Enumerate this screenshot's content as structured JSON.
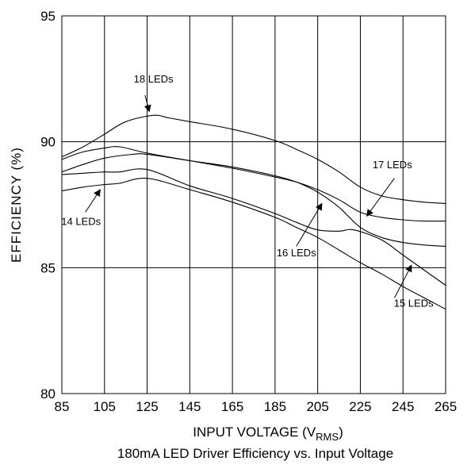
{
  "chart_data": {
    "type": "line",
    "title": "",
    "caption": "180mA LED Driver Efficiency vs. Input Voltage",
    "xlabel_main": "INPUT VOLTAGE (V",
    "xlabel_sub": "RMS",
    "xlabel_end": ")",
    "ylabel": "EFFICIENCY (%)",
    "xlim": [
      85,
      265
    ],
    "ylim": [
      80,
      95
    ],
    "x_ticks": [
      85,
      105,
      125,
      145,
      165,
      185,
      205,
      225,
      245,
      265
    ],
    "y_ticks": [
      80,
      85,
      90,
      95
    ],
    "grid": true,
    "series": [
      {
        "name": "18 LEDs",
        "points": [
          [
            85,
            89.4
          ],
          [
            95,
            89.8
          ],
          [
            105,
            90.3
          ],
          [
            115,
            90.8
          ],
          [
            128,
            91.05
          ],
          [
            135,
            90.95
          ],
          [
            145,
            90.8
          ],
          [
            165,
            90.5
          ],
          [
            185,
            90.05
          ],
          [
            195,
            89.7
          ],
          [
            205,
            89.3
          ],
          [
            215,
            88.8
          ],
          [
            225,
            88.2
          ],
          [
            235,
            87.85
          ],
          [
            245,
            87.7
          ],
          [
            255,
            87.6
          ],
          [
            265,
            87.55
          ]
        ]
      },
      {
        "name": "17 LEDs",
        "points": [
          [
            85,
            89.3
          ],
          [
            95,
            89.6
          ],
          [
            105,
            89.75
          ],
          [
            112,
            89.8
          ],
          [
            125,
            89.55
          ],
          [
            145,
            89.25
          ],
          [
            165,
            88.95
          ],
          [
            185,
            88.6
          ],
          [
            195,
            88.4
          ],
          [
            205,
            88.1
          ],
          [
            215,
            87.7
          ],
          [
            225,
            87.2
          ],
          [
            235,
            87.0
          ],
          [
            245,
            86.9
          ],
          [
            255,
            86.85
          ],
          [
            265,
            86.85
          ]
        ]
      },
      {
        "name": "16 LEDs",
        "points": [
          [
            85,
            88.8
          ],
          [
            95,
            89.1
          ],
          [
            105,
            89.35
          ],
          [
            118,
            89.5
          ],
          [
            125,
            89.5
          ],
          [
            145,
            89.25
          ],
          [
            165,
            89.0
          ],
          [
            185,
            88.65
          ],
          [
            195,
            88.4
          ],
          [
            205,
            88.0
          ],
          [
            215,
            87.4
          ],
          [
            225,
            86.6
          ],
          [
            235,
            86.2
          ],
          [
            245,
            86.0
          ],
          [
            255,
            85.9
          ],
          [
            265,
            85.85
          ]
        ]
      },
      {
        "name": "15 LEDs",
        "points": [
          [
            85,
            88.7
          ],
          [
            95,
            88.75
          ],
          [
            105,
            88.8
          ],
          [
            112,
            88.8
          ],
          [
            125,
            88.9
          ],
          [
            145,
            88.25
          ],
          [
            165,
            87.75
          ],
          [
            185,
            87.15
          ],
          [
            195,
            86.8
          ],
          [
            205,
            86.5
          ],
          [
            215,
            86.45
          ],
          [
            222,
            86.5
          ],
          [
            235,
            86.1
          ],
          [
            245,
            85.5
          ],
          [
            255,
            84.9
          ],
          [
            265,
            84.3
          ]
        ]
      },
      {
        "name": "14 LEDs",
        "points": [
          [
            85,
            88.05
          ],
          [
            95,
            88.2
          ],
          [
            105,
            88.3
          ],
          [
            112,
            88.35
          ],
          [
            125,
            88.55
          ],
          [
            145,
            88.1
          ],
          [
            165,
            87.6
          ],
          [
            185,
            87.0
          ],
          [
            195,
            86.6
          ],
          [
            205,
            86.2
          ],
          [
            215,
            85.7
          ],
          [
            225,
            85.2
          ],
          [
            235,
            84.75
          ],
          [
            245,
            84.25
          ],
          [
            255,
            83.8
          ],
          [
            265,
            83.35
          ]
        ]
      }
    ],
    "annotations": [
      {
        "label": "18 LEDs",
        "text_at": [
          128,
          92.35
        ],
        "arrow_from": [
          124,
          91.85
        ],
        "arrow_to": [
          126,
          91.2
        ]
      },
      {
        "label": "17 LEDs",
        "text_at": [
          240,
          88.95
        ],
        "arrow_from": [
          241,
          88.55
        ],
        "arrow_to": [
          228,
          87.05
        ]
      },
      {
        "label": "16 LEDs",
        "text_at": [
          195,
          85.45
        ],
        "arrow_from": [
          195,
          85.85
        ],
        "arrow_to": [
          207,
          87.55
        ]
      },
      {
        "label": "15 LEDs",
        "text_at": [
          250,
          83.45
        ],
        "arrow_from": [
          241,
          83.8
        ],
        "arrow_to": [
          249,
          85.1
        ]
      },
      {
        "label": "14 LEDs",
        "text_at": [
          94,
          86.7
        ],
        "arrow_from": [
          96,
          87.2
        ],
        "arrow_to": [
          103,
          88.1
        ]
      }
    ]
  }
}
